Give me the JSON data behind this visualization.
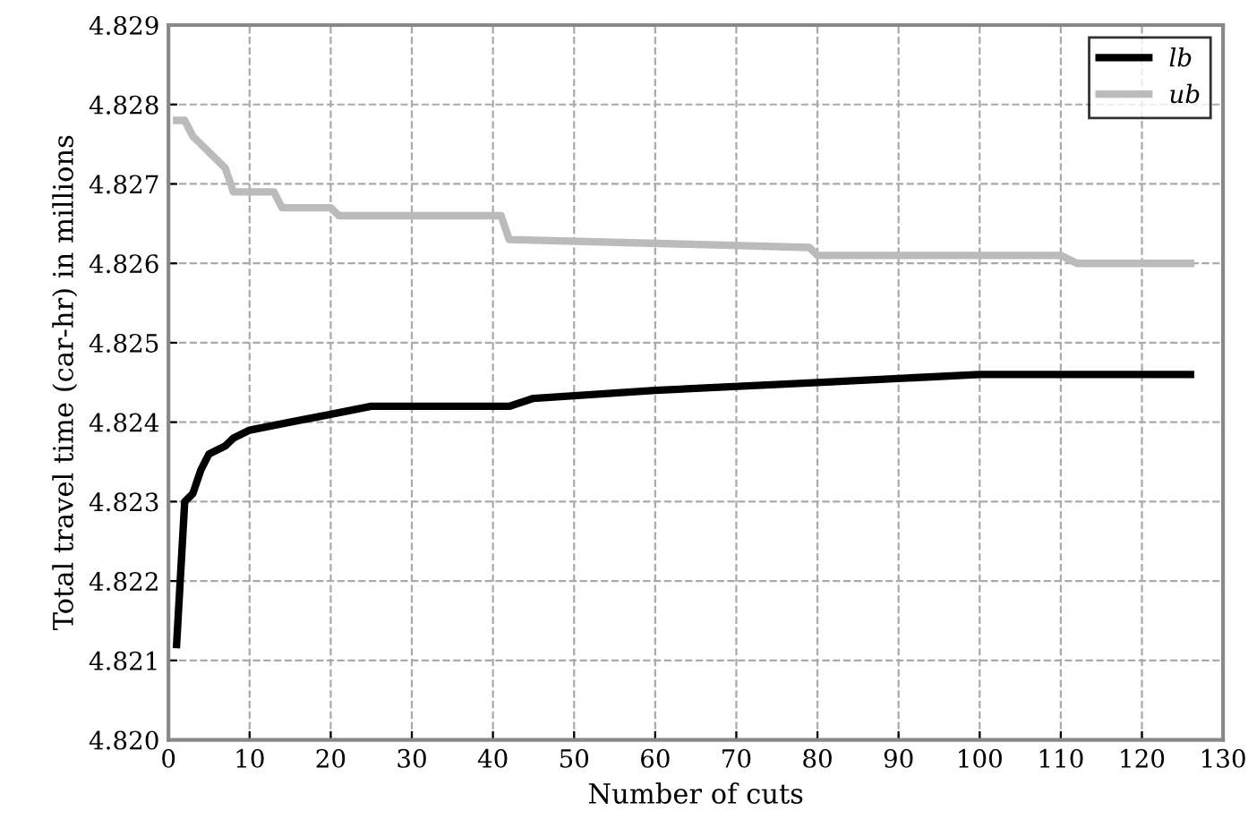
{
  "chart_data": {
    "type": "line",
    "xlabel": "Number of cuts",
    "ylabel": "Total travel time (car-hr) in millions",
    "xlim": [
      0,
      130
    ],
    "xticks": [
      0,
      10,
      20,
      30,
      40,
      50,
      60,
      70,
      80,
      90,
      100,
      110,
      120,
      130
    ],
    "ylim": [
      4.82,
      4.829
    ],
    "yticks": [
      {
        "value": 4.82,
        "label": "4.820"
      },
      {
        "value": 4.821,
        "label": "4.821"
      },
      {
        "value": 4.822,
        "label": "4.822"
      },
      {
        "value": 4.823,
        "label": "4.823"
      },
      {
        "value": 4.824,
        "label": "4.824"
      },
      {
        "value": 4.825,
        "label": "4.825"
      },
      {
        "value": 4.826,
        "label": "4.826"
      },
      {
        "value": 4.827,
        "label": "4.827"
      },
      {
        "value": 4.828,
        "label": "4.828"
      },
      {
        "value": 4.829,
        "label": "4.829"
      }
    ],
    "grid": true,
    "legend": "top right",
    "marker": "none",
    "line_style": "solid",
    "series": [
      {
        "name": "lb",
        "color": "#000000",
        "x": [
          1,
          2,
          3,
          4,
          5,
          7,
          8,
          10,
          15,
          20,
          25,
          40,
          42,
          45,
          60,
          80,
          100,
          126
        ],
        "values": [
          4.8212,
          4.823,
          4.8231,
          4.8234,
          4.8236,
          4.8237,
          4.8238,
          4.8239,
          4.824,
          4.8241,
          4.8242,
          4.8242,
          4.8242,
          4.8243,
          4.8244,
          4.8245,
          4.8246,
          4.8246
        ]
      },
      {
        "name": "ub",
        "color": "#bbbbbb",
        "x": [
          1,
          2,
          3,
          4,
          5,
          7,
          8,
          13,
          14,
          20,
          21,
          41,
          42,
          79,
          80,
          110,
          112,
          126
        ],
        "values": [
          4.8278,
          4.8278,
          4.8276,
          4.8275,
          4.8274,
          4.8272,
          4.8269,
          4.8269,
          4.8267,
          4.8267,
          4.8266,
          4.8266,
          4.8263,
          4.8262,
          4.8261,
          4.8261,
          4.826,
          4.826
        ]
      }
    ]
  }
}
